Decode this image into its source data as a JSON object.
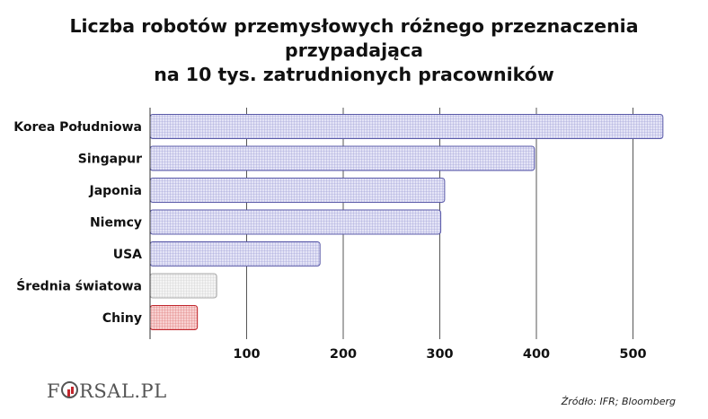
{
  "title": {
    "line1": "Liczba robotów przemysłowych różnego przeznaczenia przypadająca",
    "line2": "na 10 tys. zatrudnionych pracowników"
  },
  "chart_data": {
    "type": "bar",
    "orientation": "horizontal",
    "categories": [
      "Korea Południowa",
      "Singapur",
      "Japonia",
      "Niemcy",
      "USA",
      "Średnia światowa",
      "Chiny"
    ],
    "values": [
      531,
      398,
      305,
      301,
      176,
      69,
      49
    ],
    "bar_colors": [
      "#d9d9f2",
      "#d9d9f2",
      "#d9d9f2",
      "#d9d9f2",
      "#d9d9f2",
      "#eeeeee",
      "#f4bcbc"
    ],
    "bar_borders": [
      "#5a5aa8",
      "#5a5aa8",
      "#5a5aa8",
      "#5a5aa8",
      "#5a5aa8",
      "#aaaaaa",
      "#c1272d"
    ],
    "xticks": [
      100,
      200,
      300,
      400,
      500
    ],
    "xlim": [
      0,
      560
    ],
    "xlabel": "",
    "ylabel": "",
    "grid": "vertical"
  },
  "logo": {
    "text_pre": "F",
    "text_post": "RSAL.PL"
  },
  "source": "Źródło:  IFR; Bloomberg"
}
